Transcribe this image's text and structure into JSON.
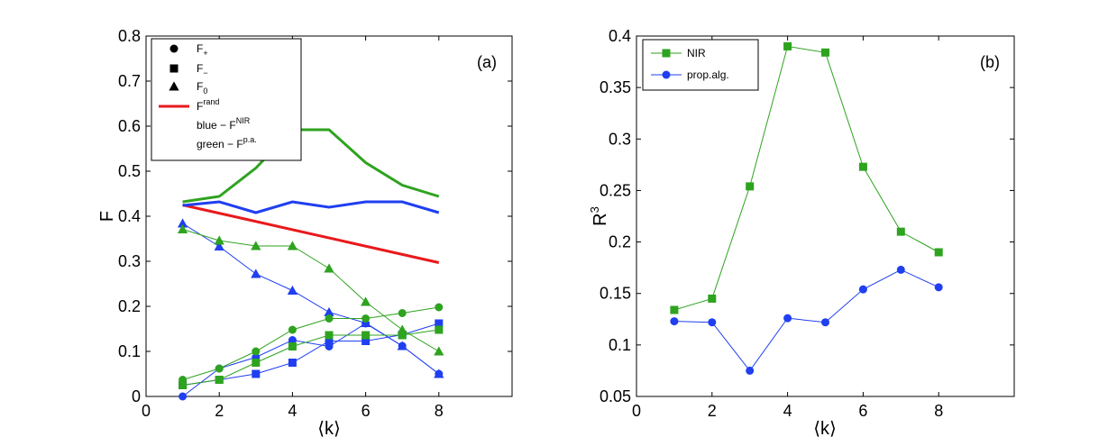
{
  "chart_data": [
    {
      "type": "line",
      "panel_label": "(a)",
      "xlabel": "⟨k⟩",
      "ylabel": "F",
      "xlim": [
        0,
        10
      ],
      "ylim": [
        0,
        0.8
      ],
      "xticks": [
        "0",
        "2",
        "4",
        "6",
        "8"
      ],
      "yticks": [
        "0",
        "0.1",
        "0.2",
        "0.3",
        "0.4",
        "0.5",
        "0.6",
        "0.7",
        "0.8"
      ],
      "colors": {
        "blue": "#1f3ff0",
        "green": "#2ea31f",
        "red": "#e8191c"
      },
      "legend": {
        "entries": [
          {
            "marker": "circle",
            "text": "F",
            "sub": "+"
          },
          {
            "marker": "square",
            "text": "F",
            "sub": "−"
          },
          {
            "marker": "triangle",
            "text": "F",
            "sub": "0"
          },
          {
            "marker": "line-red",
            "text": "F",
            "sup": "rand"
          },
          {
            "marker": "none",
            "text": "blue − F",
            "sup": "NIR"
          },
          {
            "marker": "none",
            "text": "green − F",
            "sup": "p.a."
          }
        ]
      },
      "series": [
        {
          "name": "F+ NIR",
          "color": "blue",
          "marker": "circle",
          "x": [
            1,
            2,
            3,
            4,
            5,
            6,
            7,
            8
          ],
          "values": [
            0.0,
            0.062,
            0.087,
            0.125,
            0.111,
            0.162,
            0.112,
            0.05
          ]
        },
        {
          "name": "F- NIR",
          "color": "blue",
          "marker": "square",
          "x": [
            1,
            2,
            3,
            4,
            5,
            6,
            7,
            8
          ],
          "values": [
            0.025,
            0.037,
            0.05,
            0.075,
            0.123,
            0.123,
            0.137,
            0.162
          ]
        },
        {
          "name": "F0 NIR",
          "color": "blue",
          "marker": "triangle",
          "x": [
            1,
            2,
            3,
            4,
            5,
            6,
            7,
            8
          ],
          "values": [
            0.384,
            0.333,
            0.272,
            0.235,
            0.187,
            0.163,
            0.112,
            0.05
          ]
        },
        {
          "name": "F+ p.a.",
          "color": "green",
          "marker": "circle",
          "x": [
            1,
            2,
            3,
            4,
            5,
            6,
            7,
            8
          ],
          "values": [
            0.037,
            0.062,
            0.1,
            0.148,
            0.173,
            0.173,
            0.185,
            0.198
          ]
        },
        {
          "name": "F- p.a.",
          "color": "green",
          "marker": "square",
          "x": [
            1,
            2,
            3,
            4,
            5,
            6,
            7,
            8
          ],
          "values": [
            0.025,
            0.037,
            0.075,
            0.111,
            0.136,
            0.136,
            0.136,
            0.148
          ]
        },
        {
          "name": "F0 p.a.",
          "color": "green",
          "marker": "triangle",
          "x": [
            1,
            2,
            3,
            4,
            5,
            6,
            7,
            8
          ],
          "values": [
            0.371,
            0.346,
            0.334,
            0.334,
            0.284,
            0.21,
            0.148,
            0.1
          ]
        },
        {
          "name": "Frand",
          "color": "red",
          "marker": "none",
          "thick": true,
          "x": [
            1,
            8
          ],
          "values": [
            0.425,
            0.297
          ]
        },
        {
          "name": "F NIR",
          "color": "blue",
          "marker": "none",
          "thick": true,
          "x": [
            1,
            2,
            3,
            4,
            5,
            6,
            7,
            8
          ],
          "values": [
            0.424,
            0.432,
            0.408,
            0.432,
            0.42,
            0.432,
            0.432,
            0.408
          ]
        },
        {
          "name": "F p.a.",
          "color": "green",
          "marker": "none",
          "thick": true,
          "x": [
            1,
            2,
            3,
            4,
            5,
            6,
            7,
            8
          ],
          "values": [
            0.432,
            0.444,
            0.507,
            0.592,
            0.592,
            0.519,
            0.469,
            0.444
          ]
        }
      ]
    },
    {
      "type": "line",
      "panel_label": "(b)",
      "xlabel": "⟨k⟩",
      "ylabel": "R",
      "ylabel_sup": "3",
      "xlim": [
        0,
        10
      ],
      "ylim": [
        0.05,
        0.4
      ],
      "xticks": [
        "0",
        "2",
        "4",
        "6",
        "8"
      ],
      "yticks": [
        "0.05",
        "0.1",
        "0.15",
        "0.2",
        "0.25",
        "0.3",
        "0.35",
        "0.4"
      ],
      "colors": {
        "blue": "#1f3ff0",
        "green": "#2ea31f"
      },
      "legend": {
        "entries": [
          {
            "marker": "square",
            "color": "green",
            "text": "NIR"
          },
          {
            "marker": "circle",
            "color": "blue",
            "text": "prop.alg."
          }
        ]
      },
      "series": [
        {
          "name": "NIR",
          "color": "green",
          "marker": "square",
          "x": [
            1,
            2,
            3,
            4,
            5,
            6,
            7,
            8
          ],
          "values": [
            0.134,
            0.145,
            0.254,
            0.39,
            0.384,
            0.273,
            0.21,
            0.19
          ]
        },
        {
          "name": "prop.alg.",
          "color": "blue",
          "marker": "circle",
          "x": [
            1,
            2,
            3,
            4,
            5,
            6,
            7,
            8
          ],
          "values": [
            0.123,
            0.122,
            0.075,
            0.126,
            0.122,
            0.154,
            0.173,
            0.156
          ]
        }
      ]
    }
  ]
}
